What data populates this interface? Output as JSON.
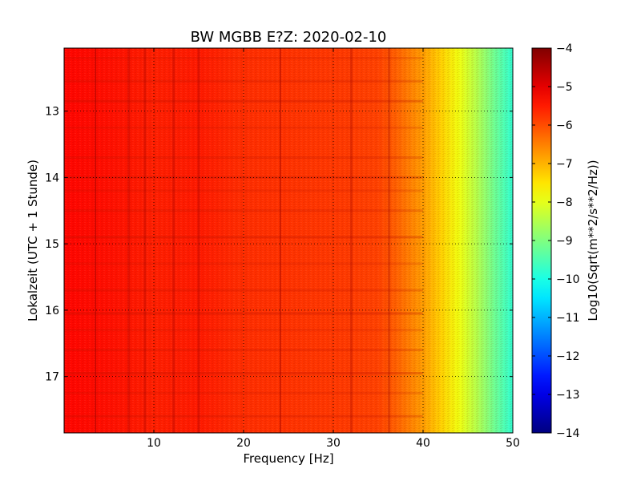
{
  "chart_data": {
    "type": "heatmap",
    "title": "BW MGBB E?Z: 2020-02-10",
    "xlabel": "Frequency [Hz]",
    "ylabel": "Lokalzeit (UTC + 1 Stunde)",
    "xlim": [
      0,
      50
    ],
    "ylim": [
      12.05,
      17.85
    ],
    "x_ticks": [
      10,
      20,
      30,
      40,
      50
    ],
    "x_tick_labels": [
      "10",
      "20",
      "30",
      "40",
      "50"
    ],
    "y_ticks": [
      13,
      14,
      15,
      16,
      17
    ],
    "y_tick_labels": [
      "13",
      "14",
      "15",
      "16",
      "17"
    ],
    "y_inverted": true,
    "grid": true,
    "colormap": "jet",
    "colorbar": {
      "label": "Log10(Sqrt(m**2/s**2/Hz))",
      "range": [
        -14,
        -4
      ],
      "ticks": [
        -4,
        -5,
        -6,
        -7,
        -8,
        -9,
        -10,
        -11,
        -12,
        -13,
        -14
      ],
      "tick_labels": [
        "−4",
        "−5",
        "−6",
        "−7",
        "−8",
        "−9",
        "−10",
        "−11",
        "−12",
        "−13",
        "−14"
      ]
    },
    "spectrum_profile": {
      "frequency_hz": [
        0,
        5,
        10,
        15,
        20,
        25,
        30,
        35,
        37,
        40,
        42,
        44,
        46,
        48,
        50
      ],
      "log_amplitude": [
        -5.3,
        -5.4,
        -5.55,
        -5.5,
        -5.7,
        -5.75,
        -5.8,
        -5.9,
        -6.2,
        -6.8,
        -7.3,
        -7.9,
        -8.5,
        -9.2,
        -9.8
      ]
    },
    "vertical_lines_hz": [
      3.5,
      7.2,
      9.0,
      12.2,
      15.0,
      24.1,
      32.0,
      36.2
    ],
    "horizontal_bands_hour": [
      12.2,
      12.55,
      12.85,
      13.25,
      13.7,
      14.0,
      14.2,
      14.5,
      14.9,
      15.3,
      15.7,
      16.05,
      16.3,
      16.6,
      16.95,
      17.25,
      17.6
    ]
  }
}
